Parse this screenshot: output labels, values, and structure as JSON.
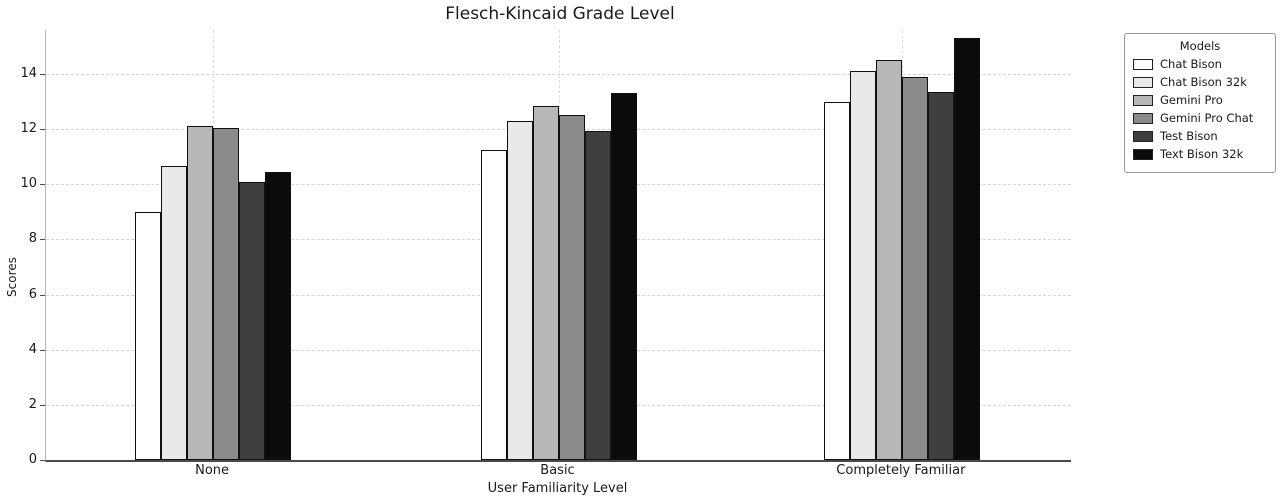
{
  "chart_data": {
    "type": "bar",
    "title": "Flesch-Kincaid Grade Level",
    "xlabel": "User Familiarity Level",
    "ylabel": "Scores",
    "categories": [
      "None",
      "Basic",
      "Completely Familiar"
    ],
    "series": [
      {
        "name": "Chat Bison",
        "color": "#ffffff",
        "values": [
          9.0,
          11.25,
          13.0
        ]
      },
      {
        "name": "Chat Bison 32k",
        "color": "#e9e9e9",
        "values": [
          10.65,
          12.3,
          14.1
        ]
      },
      {
        "name": "Gemini Pro",
        "color": "#b8b8b8",
        "values": [
          12.1,
          12.85,
          14.5
        ]
      },
      {
        "name": "Gemini Pro Chat",
        "color": "#8a8a8a",
        "values": [
          12.05,
          12.5,
          13.9
        ]
      },
      {
        "name": "Test Bison",
        "color": "#3f3f3f",
        "values": [
          10.1,
          11.95,
          13.35
        ]
      },
      {
        "name": "Text Bison 32k",
        "color": "#0b0b0b",
        "values": [
          10.45,
          13.3,
          15.3
        ]
      }
    ],
    "ylim": [
      0,
      15.6
    ],
    "yticks": [
      0,
      2,
      4,
      6,
      8,
      10,
      12,
      14
    ],
    "grid": true,
    "legend_title": "Models",
    "legend_position": "outside-upper-right"
  }
}
